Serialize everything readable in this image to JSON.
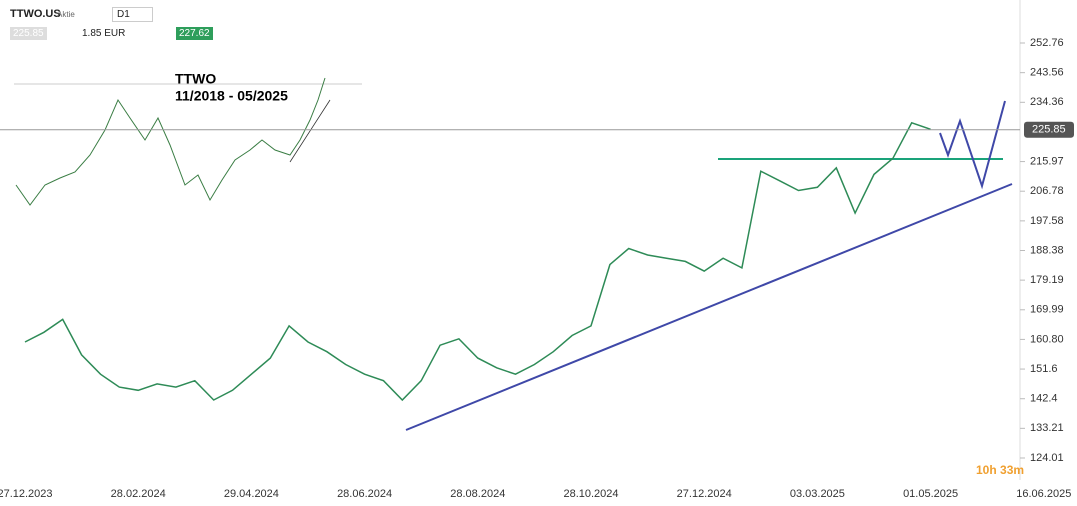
{
  "toolbar": {
    "symbol": "TTWO.US",
    "kind": "Aktie",
    "interval": "D1",
    "bid": "225.85",
    "spread": "1.85 EUR",
    "ask": "227.62"
  },
  "countdown": {
    "hours": "10h",
    "minutes": "33m"
  },
  "chart_data": {
    "type": "line",
    "color": "#2e8b57",
    "annotations": [
      "TTWO",
      "11/2018 - 05/2025"
    ],
    "categories": [
      "27.12.2023",
      null,
      null,
      null,
      null,
      null,
      "28.02.2024",
      null,
      null,
      null,
      null,
      null,
      "29.04.2024",
      null,
      null,
      null,
      null,
      null,
      "28.06.2024",
      null,
      null,
      null,
      null,
      null,
      "28.08.2024",
      null,
      null,
      null,
      null,
      null,
      "28.10.2024",
      null,
      null,
      null,
      null,
      null,
      "27.12.2024",
      null,
      null,
      null,
      null,
      null,
      "03.03.2025",
      null,
      null,
      null,
      null,
      null,
      "01.05.2025",
      null,
      null,
      null,
      null,
      null,
      "16.06.2025"
    ],
    "values": [
      160,
      163,
      167,
      156,
      150,
      146,
      145,
      147,
      146,
      148,
      142,
      145,
      150,
      155,
      165,
      160,
      157,
      153,
      150,
      148,
      142,
      148,
      159,
      161,
      155,
      152,
      150,
      153,
      157,
      162,
      165,
      184,
      189,
      187,
      186,
      185,
      182,
      186,
      183,
      213,
      210,
      207,
      208,
      214,
      200,
      212,
      217,
      228,
      226,
      null,
      null,
      null,
      null,
      null,
      null
    ],
    "last_price": 225.85,
    "ylim": [
      117.18,
      263
    ],
    "yticks": [
      252.76,
      243.56,
      234.36,
      215.97,
      206.78,
      197.58,
      188.38,
      179.19,
      169.99,
      {
        "value": 160.8,
        "label": "160.80"
      },
      151.6,
      142.4,
      133.21,
      124.01
    ],
    "grid": false
  }
}
